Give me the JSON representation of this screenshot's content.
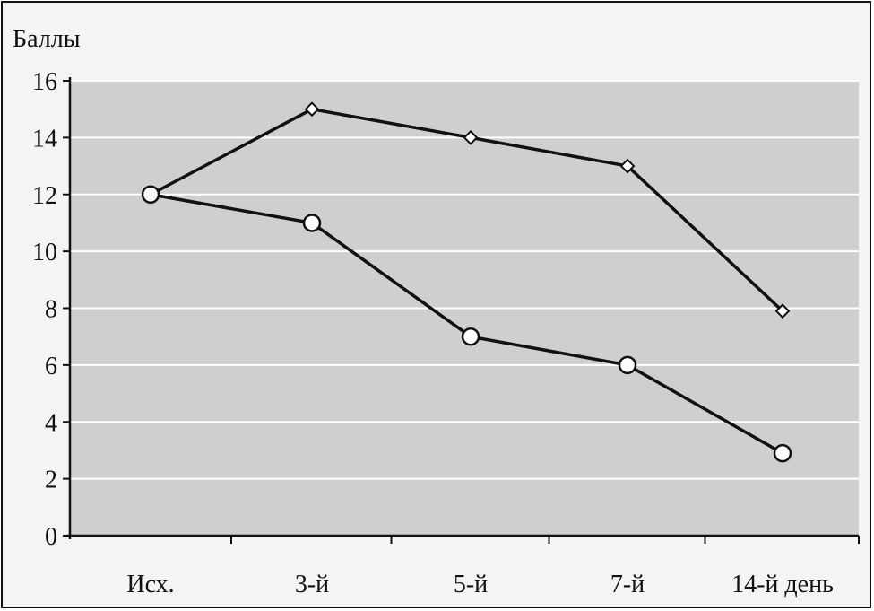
{
  "chart_data": {
    "type": "line",
    "title": "",
    "xlabel": "",
    "ylabel": "Баллы",
    "categories": [
      "Исх.",
      "3-й",
      "5-й",
      "7-й",
      "14-й день"
    ],
    "ylim": [
      0,
      16
    ],
    "yticks": [
      0,
      2,
      4,
      6,
      8,
      10,
      12,
      14,
      16
    ],
    "grid": true,
    "legend": "none",
    "series": [
      {
        "marker": "diamond",
        "values": [
          12,
          15,
          14,
          13,
          7.9
        ]
      },
      {
        "marker": "circle",
        "values": [
          12,
          11,
          7,
          6,
          2.9
        ]
      }
    ],
    "colors": {
      "plot_bg": "#cfcfcf",
      "line": "#111111",
      "gridline": "#ffffff",
      "marker_fill": "#ffffff"
    }
  }
}
